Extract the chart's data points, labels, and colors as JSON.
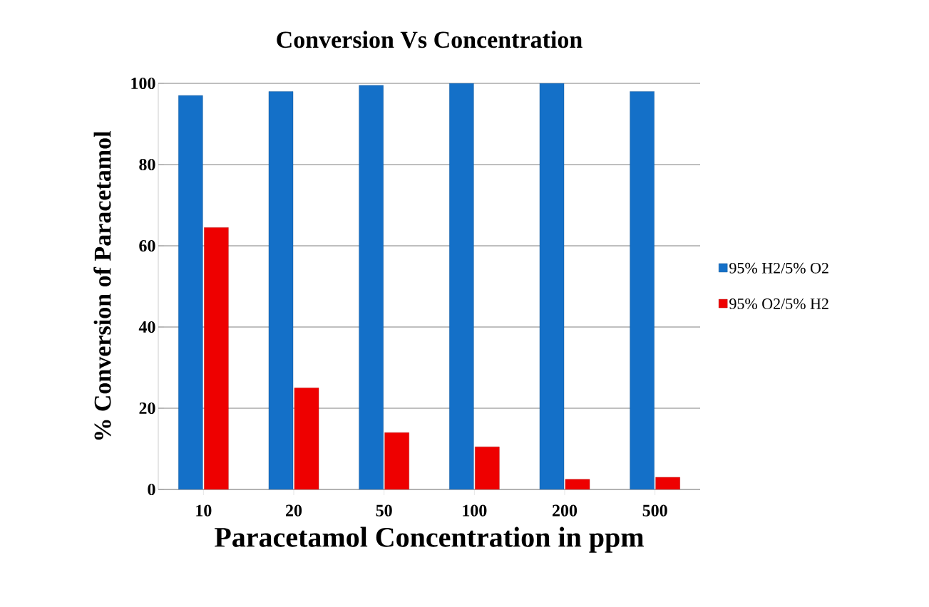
{
  "chart_data": {
    "type": "bar",
    "title": "Conversion Vs Concentration",
    "xlabel": "Paracetamol Concentration in ppm",
    "ylabel": "% Conversion of Paracetamol",
    "categories": [
      "10",
      "20",
      "50",
      "100",
      "200",
      "500"
    ],
    "series": [
      {
        "name": "95% H2/5% O2",
        "color": "#1470c8",
        "values": [
          97,
          98,
          99.5,
          100,
          100,
          98
        ]
      },
      {
        "name": "95% O2/5% H2",
        "color": "#ee0000",
        "values": [
          64.5,
          25,
          14,
          10.5,
          2.5,
          3
        ]
      }
    ],
    "ylim": [
      0,
      100
    ],
    "yticks": [
      0,
      20,
      40,
      60,
      80,
      100
    ],
    "grid": "y",
    "legend": "right"
  }
}
